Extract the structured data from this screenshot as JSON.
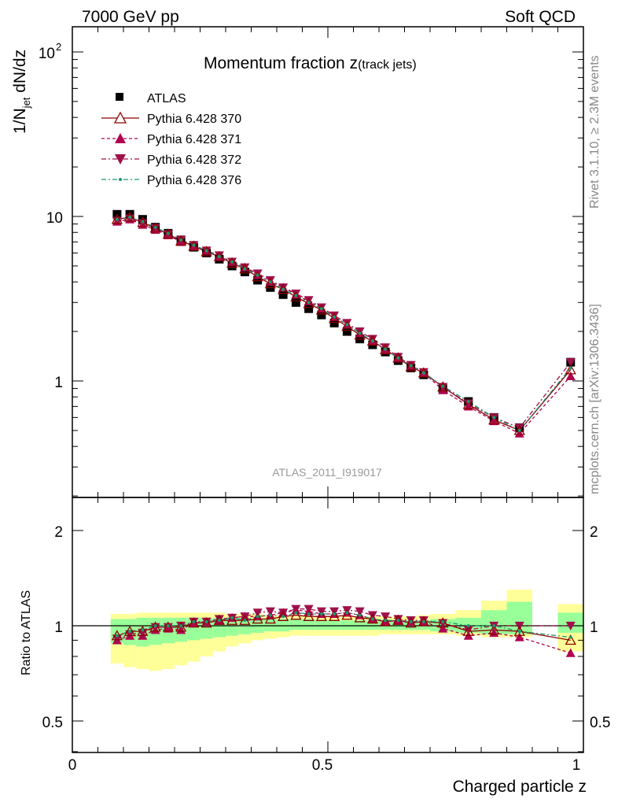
{
  "header": {
    "left": "7000 GeV pp",
    "right": "Soft QCD"
  },
  "plot_title": {
    "main": "Momentum fraction z",
    "sub": "(track jets)"
  },
  "watermark": "ATLAS_2011_I919017",
  "side_labels": {
    "rivet": "Rivet 3.1.10, ≥ 2.3M events",
    "mcplots": "mcplots.cern.ch [arXiv:1306.3436]"
  },
  "axes": {
    "ylabel_top": "1/N",
    "ylabel_top_sub": "jet",
    "ylabel_top_tail": " dN/dz",
    "ylabel_bottom": "Ratio to ATLAS",
    "xlabel": "Charged particle z",
    "x_ticks": [
      "0",
      "0.5",
      "1"
    ],
    "y_top_ticks": [
      "1",
      "10"
    ],
    "y_top_tick_100_base": "10",
    "y_top_tick_100_exp": "2",
    "y_bottom_ticks": [
      "0.5",
      "1",
      "2"
    ]
  },
  "colors": {
    "atlas": "#000000",
    "p370": "#8b0000",
    "p371": "#b0004f",
    "p372": "#a0104a",
    "p376": "#1a9a6a",
    "band_inner": "#99ff99",
    "band_outer": "#ffff99"
  },
  "chart_data": [
    {
      "type": "scatter",
      "xlabel": "",
      "ylabel": "1/N_jet dN/dz",
      "xlim": [
        0,
        1
      ],
      "ylim": [
        0.2,
        150
      ],
      "yscale": "log",
      "x": [
        0.0875,
        0.1125,
        0.1375,
        0.1625,
        0.1875,
        0.2125,
        0.2375,
        0.2625,
        0.2875,
        0.3125,
        0.3375,
        0.3625,
        0.3875,
        0.4125,
        0.4375,
        0.4625,
        0.4875,
        0.5125,
        0.5375,
        0.5625,
        0.5875,
        0.6125,
        0.6375,
        0.6625,
        0.6875,
        0.725,
        0.775,
        0.825,
        0.875,
        0.975
      ],
      "series": [
        {
          "name": "ATLAS",
          "marker": "square",
          "values": [
            10.3,
            10.3,
            9.6,
            8.6,
            7.9,
            7.2,
            6.5,
            6.0,
            5.5,
            5.0,
            4.6,
            4.1,
            3.7,
            3.35,
            3.0,
            2.75,
            2.52,
            2.25,
            2.0,
            1.8,
            1.66,
            1.5,
            1.33,
            1.2,
            1.09,
            0.9,
            0.75,
            0.6,
            0.52,
            1.3
          ]
        },
        {
          "name": "Pythia 6.428 370",
          "marker": "triangle-open",
          "values": [
            9.6,
            9.9,
            9.2,
            8.5,
            7.8,
            7.1,
            6.6,
            6.1,
            5.7,
            5.2,
            4.8,
            4.3,
            3.9,
            3.6,
            3.25,
            2.95,
            2.7,
            2.4,
            2.15,
            1.9,
            1.75,
            1.55,
            1.38,
            1.22,
            1.12,
            0.92,
            0.72,
            0.58,
            0.5,
            1.17
          ]
        },
        {
          "name": "Pythia 6.428 371",
          "marker": "triangle-up",
          "values": [
            9.3,
            9.6,
            8.9,
            8.3,
            7.7,
            7.0,
            6.6,
            6.2,
            5.7,
            5.3,
            4.9,
            4.4,
            4.0,
            3.7,
            3.35,
            3.05,
            2.75,
            2.45,
            2.2,
            1.95,
            1.75,
            1.55,
            1.38,
            1.24,
            1.12,
            0.88,
            0.7,
            0.57,
            0.48,
            1.07
          ]
        },
        {
          "name": "Pythia 6.428 372",
          "marker": "triangle-down",
          "values": [
            9.4,
            9.7,
            9.1,
            8.5,
            7.8,
            7.2,
            6.7,
            6.2,
            5.8,
            5.3,
            4.9,
            4.5,
            4.1,
            3.7,
            3.4,
            3.1,
            2.8,
            2.5,
            2.25,
            2.0,
            1.8,
            1.6,
            1.4,
            1.25,
            1.13,
            0.92,
            0.73,
            0.6,
            0.52,
            1.3
          ]
        },
        {
          "name": "Pythia 6.428 376",
          "marker": "dot",
          "values": [
            9.6,
            9.9,
            9.3,
            8.6,
            7.9,
            7.2,
            6.7,
            6.2,
            5.7,
            5.3,
            4.8,
            4.4,
            4.0,
            3.6,
            3.3,
            3.0,
            2.75,
            2.45,
            2.2,
            1.95,
            1.75,
            1.56,
            1.38,
            1.24,
            1.12,
            0.93,
            0.75,
            0.6,
            0.5,
            1.2
          ]
        }
      ]
    },
    {
      "type": "line",
      "xlabel": "Charged particle z",
      "ylabel": "Ratio to ATLAS",
      "xlim": [
        0,
        1
      ],
      "ylim": [
        0.4,
        2.5
      ],
      "yscale": "log",
      "x": [
        0.0875,
        0.1125,
        0.1375,
        0.1625,
        0.1875,
        0.2125,
        0.2375,
        0.2625,
        0.2875,
        0.3125,
        0.3375,
        0.3625,
        0.3875,
        0.4125,
        0.4375,
        0.4625,
        0.4875,
        0.5125,
        0.5375,
        0.5625,
        0.5875,
        0.6125,
        0.6375,
        0.6625,
        0.6875,
        0.725,
        0.775,
        0.825,
        0.875,
        0.975
      ],
      "band_edges": [
        0.075,
        0.1,
        0.125,
        0.15,
        0.175,
        0.2,
        0.225,
        0.25,
        0.275,
        0.3,
        0.325,
        0.35,
        0.375,
        0.4,
        0.425,
        0.45,
        0.475,
        0.5,
        0.525,
        0.55,
        0.575,
        0.6,
        0.625,
        0.65,
        0.675,
        0.7,
        0.75,
        0.8,
        0.85,
        0.9,
        0.95,
        1.0
      ],
      "band_inner_lo": [
        0.88,
        0.87,
        0.86,
        0.87,
        0.88,
        0.89,
        0.9,
        0.91,
        0.92,
        0.93,
        0.94,
        0.95,
        0.96,
        0.96,
        0.97,
        0.97,
        0.97,
        0.97,
        0.97,
        0.97,
        0.97,
        0.97,
        0.97,
        0.97,
        0.97,
        0.96,
        0.95,
        0.94,
        0.94,
        null,
        0.95
      ],
      "band_inner_hi": [
        1.05,
        1.05,
        1.06,
        1.06,
        1.06,
        1.06,
        1.06,
        1.06,
        1.06,
        1.06,
        1.06,
        1.05,
        1.05,
        1.05,
        1.05,
        1.05,
        1.04,
        1.04,
        1.04,
        1.04,
        1.04,
        1.04,
        1.04,
        1.04,
        1.04,
        1.05,
        1.06,
        1.12,
        1.19,
        null,
        1.1
      ],
      "band_outer_lo": [
        0.76,
        0.74,
        0.73,
        0.72,
        0.73,
        0.75,
        0.77,
        0.8,
        0.83,
        0.86,
        0.88,
        0.9,
        0.91,
        0.92,
        0.93,
        0.93,
        0.93,
        0.93,
        0.93,
        0.93,
        0.93,
        0.94,
        0.94,
        0.94,
        0.94,
        0.94,
        0.93,
        0.92,
        0.92,
        null,
        0.83
      ],
      "band_outer_hi": [
        1.09,
        1.09,
        1.1,
        1.1,
        1.1,
        1.1,
        1.1,
        1.1,
        1.1,
        1.09,
        1.09,
        1.09,
        1.08,
        1.08,
        1.08,
        1.07,
        1.07,
        1.07,
        1.07,
        1.07,
        1.07,
        1.07,
        1.07,
        1.07,
        1.08,
        1.09,
        1.12,
        1.2,
        1.3,
        null,
        1.17
      ],
      "series": [
        {
          "name": "Pythia 6.428 370",
          "values": [
            0.93,
            0.96,
            0.96,
            0.99,
            0.99,
            0.99,
            1.02,
            1.02,
            1.04,
            1.04,
            1.04,
            1.05,
            1.05,
            1.07,
            1.08,
            1.07,
            1.07,
            1.07,
            1.08,
            1.06,
            1.05,
            1.03,
            1.04,
            1.02,
            1.03,
            1.02,
            0.96,
            0.97,
            0.96,
            0.9
          ]
        },
        {
          "name": "Pythia 6.428 371",
          "values": [
            0.9,
            0.93,
            0.93,
            0.97,
            0.98,
            0.97,
            1.02,
            1.03,
            1.04,
            1.06,
            1.07,
            1.07,
            1.08,
            1.1,
            1.12,
            1.11,
            1.09,
            1.09,
            1.1,
            1.08,
            1.05,
            1.03,
            1.04,
            1.03,
            1.03,
            0.98,
            0.93,
            0.95,
            0.92,
            0.82
          ]
        },
        {
          "name": "Pythia 6.428 372",
          "values": [
            0.91,
            0.94,
            0.95,
            0.99,
            0.99,
            1.0,
            1.03,
            1.03,
            1.05,
            1.06,
            1.07,
            1.1,
            1.11,
            1.1,
            1.13,
            1.13,
            1.11,
            1.11,
            1.12,
            1.11,
            1.08,
            1.07,
            1.05,
            1.04,
            1.04,
            1.02,
            0.97,
            1.0,
            1.0,
            1.0
          ]
        },
        {
          "name": "Pythia 6.428 376",
          "values": [
            0.93,
            0.96,
            0.97,
            1.0,
            1.0,
            1.0,
            1.03,
            1.03,
            1.04,
            1.06,
            1.04,
            1.07,
            1.08,
            1.07,
            1.1,
            1.09,
            1.09,
            1.09,
            1.1,
            1.08,
            1.05,
            1.04,
            1.04,
            1.03,
            1.03,
            1.03,
            1.0,
            1.0,
            0.96,
            0.92
          ]
        }
      ]
    }
  ]
}
